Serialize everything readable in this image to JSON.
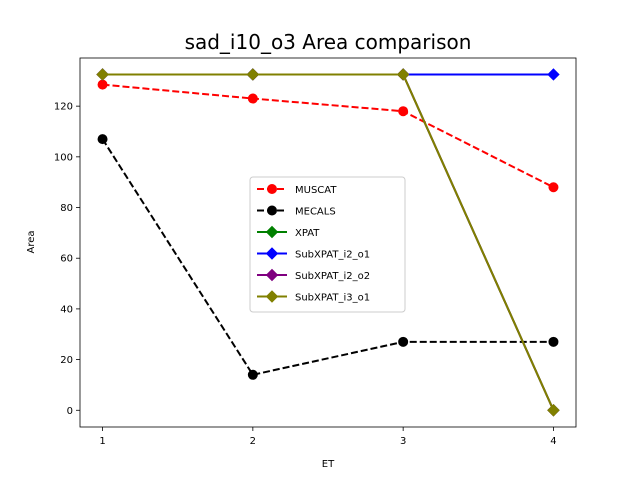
{
  "chart_data": {
    "type": "line",
    "title": "sad_i10_o3 Area comparison",
    "xlabel": "ET",
    "ylabel": "Area",
    "x": [
      1,
      2,
      3,
      4
    ],
    "xticks": [
      "1",
      "2",
      "3",
      "4"
    ],
    "yticks": [
      "0",
      "20",
      "40",
      "60",
      "80",
      "100",
      "120"
    ],
    "xlim": [
      0.85,
      4.15
    ],
    "ylim": [
      -6.6,
      139
    ],
    "grid": false,
    "legend_position": "center",
    "series": [
      {
        "name": "MUSCAT",
        "values": [
          128.5,
          123,
          118,
          88
        ],
        "color": "#ff0000",
        "dash": "dashed",
        "marker": "circle"
      },
      {
        "name": "MECALS",
        "values": [
          107,
          14,
          27,
          27
        ],
        "color": "#000000",
        "dash": "dashed",
        "marker": "circle"
      },
      {
        "name": "XPAT",
        "values": [
          132.5,
          132.5,
          132.5,
          0
        ],
        "color": "#008000",
        "dash": "solid",
        "marker": "diamond"
      },
      {
        "name": "SubXPAT_i2_o1",
        "values": [
          132.5,
          132.5,
          132.5,
          132.5
        ],
        "color": "#0000ff",
        "dash": "solid",
        "marker": "diamond"
      },
      {
        "name": "SubXPAT_i2_o2",
        "values": [
          132.5,
          132.5,
          132.5,
          0
        ],
        "color": "#800080",
        "dash": "solid",
        "marker": "diamond"
      },
      {
        "name": "SubXPAT_i3_o1",
        "values": [
          132.5,
          132.5,
          132.5,
          0
        ],
        "color": "#808000",
        "dash": "solid",
        "marker": "diamond"
      }
    ]
  }
}
